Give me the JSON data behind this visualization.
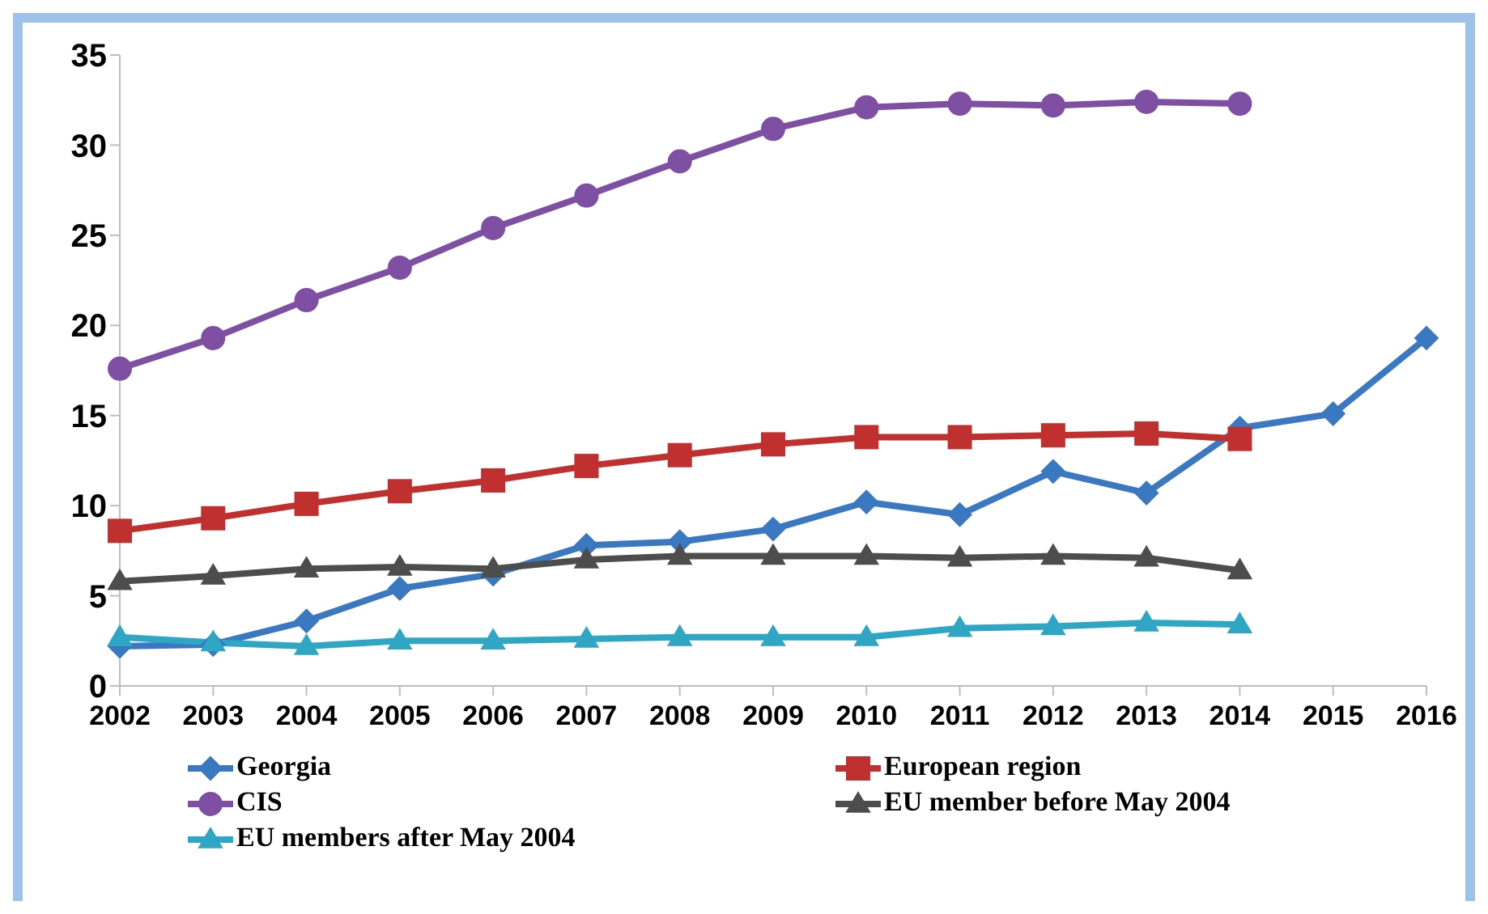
{
  "chart_data": {
    "type": "line",
    "categories": [
      "2002",
      "2003",
      "2004",
      "2005",
      "2006",
      "2007",
      "2008",
      "2009",
      "2010",
      "2011",
      "2012",
      "2013",
      "2014",
      "2015",
      "2016"
    ],
    "series": [
      {
        "name": "Georgia",
        "color": "#3a78c2",
        "marker": "diamond",
        "values": [
          2.2,
          2.3,
          3.6,
          5.4,
          6.2,
          7.8,
          8.0,
          8.7,
          10.2,
          9.5,
          11.9,
          10.7,
          14.3,
          15.1,
          19.3
        ]
      },
      {
        "name": "European region",
        "color": "#c0302e",
        "marker": "square",
        "values": [
          8.6,
          9.3,
          10.1,
          10.8,
          11.4,
          12.2,
          12.8,
          13.4,
          13.8,
          13.8,
          13.9,
          14.0,
          13.7,
          null,
          null
        ]
      },
      {
        "name": "CIS",
        "color": "#7e4fa3",
        "marker": "circle",
        "values": [
          17.6,
          19.3,
          21.4,
          23.2,
          25.4,
          27.2,
          29.1,
          30.9,
          32.1,
          32.3,
          32.2,
          32.4,
          32.3,
          null,
          null
        ]
      },
      {
        "name": "EU member before May 2004",
        "color": "#4d4d4d",
        "marker": "triangle",
        "values": [
          5.8,
          6.1,
          6.5,
          6.6,
          6.5,
          7.0,
          7.2,
          7.2,
          7.2,
          7.1,
          7.2,
          7.1,
          6.4,
          null,
          null
        ]
      },
      {
        "name": "EU members after May 2004",
        "color": "#2ea6c4",
        "marker": "triangle",
        "values": [
          2.7,
          2.4,
          2.2,
          2.5,
          2.5,
          2.6,
          2.7,
          2.7,
          2.7,
          3.2,
          3.3,
          3.5,
          3.4,
          null,
          null
        ]
      }
    ],
    "ylim": [
      0,
      35
    ],
    "yticks": [
      0,
      5,
      10,
      15,
      20,
      25,
      30,
      35
    ],
    "grid": false,
    "legend": "bottom"
  }
}
